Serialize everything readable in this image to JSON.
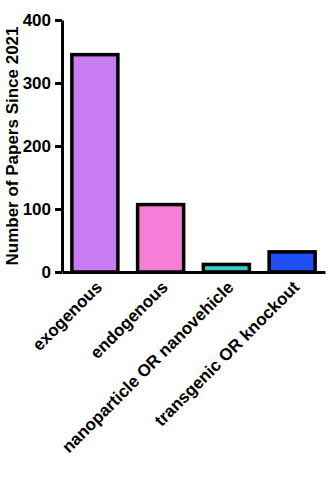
{
  "chart_data": {
    "type": "bar",
    "y_label": "Number of Papers Since 2021",
    "categories": [
      "exogenous",
      "endogenous",
      "nanoparticle OR nanovehicle",
      "transgenic OR knockout"
    ],
    "values": [
      345,
      107,
      12,
      32
    ],
    "colors": [
      "#c77cf2",
      "#f57fd6",
      "#3ec9c4",
      "#1f4ef2"
    ],
    "ylim": [
      0,
      400
    ],
    "yticks": [
      0,
      100,
      200,
      300,
      400
    ],
    "grid": false
  }
}
